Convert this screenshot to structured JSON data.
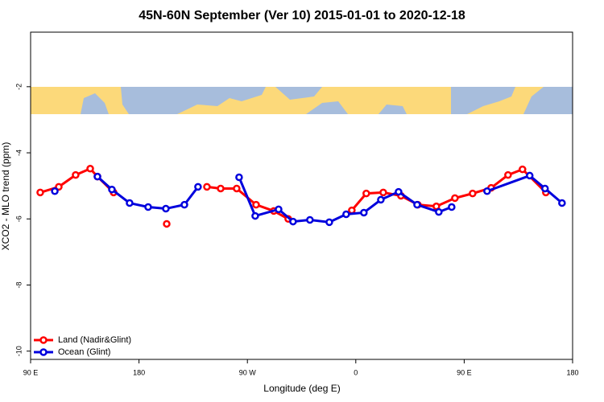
{
  "chart_data": {
    "type": "line",
    "title": "45N-60N September (Ver 10)   2015-01-01 to 2020-12-18",
    "xlabel": "Longitude (deg E)",
    "ylabel": "XCO2 - MLO trend (ppm)",
    "xlim": [
      90,
      540
    ],
    "ylim": [
      -10.25,
      -0.35
    ],
    "xticks": [
      {
        "value": 90,
        "label": "90 E"
      },
      180,
      {
        "value": 270,
        "label": "90 W"
      },
      {
        "value": 360,
        "label": "0"
      },
      {
        "value": 450,
        "label": "90 E"
      },
      {
        "value": 540,
        "label": "180"
      }
    ],
    "yticks": [
      -2,
      -4,
      -6,
      -8,
      -10
    ],
    "legend": "bottom-left",
    "series": [
      {
        "name": "Land (Nadir&Glint)",
        "color": "#ff0000",
        "x": [
          98,
          113.4,
          127.4,
          139.5,
          145.5,
          158.9,
          180,
          203,
          220,
          236.4,
          247.8,
          261.1,
          277.2,
          291.9,
          303.9,
          330,
          356.7,
          368.7,
          382.8,
          397.5,
          411.5,
          426.9,
          442.3,
          457,
          472.4,
          486.4,
          498.4,
          517.8
        ],
        "values": [
          -5.2,
          -5.03,
          -4.67,
          -4.48,
          -4.72,
          -5.2,
          null,
          -6.15,
          null,
          -5.03,
          -5.08,
          -5.08,
          -5.57,
          -5.76,
          -6.0,
          null,
          -5.74,
          -5.23,
          -5.2,
          -5.3,
          -5.57,
          -5.62,
          -5.37,
          -5.23,
          -5.06,
          -4.67,
          -4.5,
          -5.2
        ]
      },
      {
        "name": "Ocean (Glint)",
        "color": "#0000dd",
        "x": [
          110.1,
          128,
          145.5,
          157.5,
          172.2,
          187.6,
          202.3,
          217.7,
          229,
          246,
          263.1,
          276.5,
          295.9,
          307.9,
          321.9,
          338,
          352,
          366.7,
          380.8,
          395.5,
          410.9,
          428.9,
          439.6,
          455,
          469,
          504.4,
          517.1,
          531.2
        ],
        "values": [
          -5.16,
          null,
          -4.72,
          -5.11,
          -5.52,
          -5.64,
          -5.69,
          -5.57,
          -5.03,
          null,
          -4.74,
          -5.91,
          -5.71,
          -6.08,
          -6.03,
          -6.1,
          -5.86,
          -5.81,
          -5.42,
          -5.18,
          -5.57,
          -5.79,
          -5.64,
          null,
          -5.16,
          -4.69,
          -5.08,
          -5.52
        ]
      }
    ]
  }
}
